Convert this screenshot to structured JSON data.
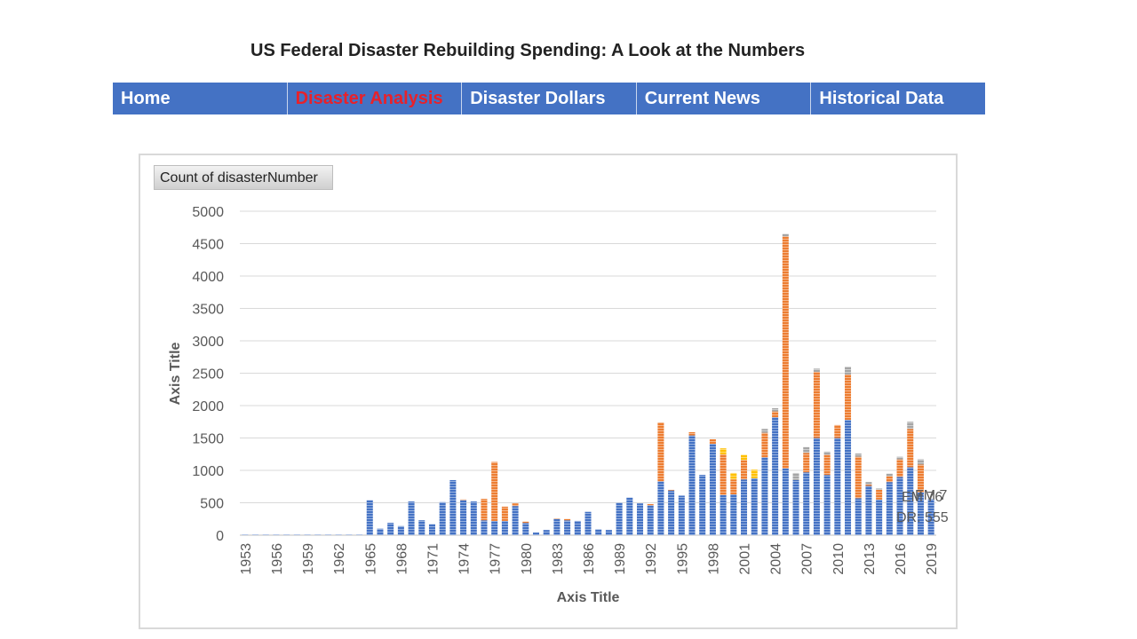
{
  "page": {
    "title": "US Federal Disaster Rebuilding Spending: A Look at the Numbers"
  },
  "nav": {
    "items": [
      {
        "label": "Home",
        "active": false
      },
      {
        "label": "Disaster Analysis",
        "active": true
      },
      {
        "label": "Disaster Dollars",
        "active": false
      },
      {
        "label": "Current News",
        "active": false
      },
      {
        "label": "Historical Data",
        "active": false
      }
    ]
  },
  "pivot_field_button": "Count of disasterNumber",
  "chart_data": {
    "type": "bar",
    "stacked": true,
    "xlabel": "Axis Title",
    "ylabel": "Axis Title",
    "ylim": [
      0,
      5000
    ],
    "yticks": [
      0,
      500,
      1000,
      1500,
      2000,
      2500,
      3000,
      3500,
      4000,
      4500,
      5000
    ],
    "grid": true,
    "x": [
      1953,
      1954,
      1955,
      1956,
      1957,
      1958,
      1959,
      1960,
      1961,
      1962,
      1963,
      1964,
      1965,
      1966,
      1967,
      1968,
      1969,
      1970,
      1971,
      1972,
      1973,
      1974,
      1975,
      1976,
      1977,
      1978,
      1979,
      1980,
      1981,
      1982,
      1983,
      1984,
      1985,
      1986,
      1987,
      1988,
      1989,
      1990,
      1991,
      1992,
      1993,
      1994,
      1995,
      1996,
      1997,
      1998,
      1999,
      2000,
      2001,
      2002,
      2003,
      2004,
      2005,
      2006,
      2007,
      2008,
      2009,
      2010,
      2011,
      2012,
      2013,
      2014,
      2015,
      2016,
      2017,
      2018,
      2019
    ],
    "xtick_labels": [
      "1953",
      "1956",
      "1959",
      "1962",
      "1965",
      "1968",
      "1971",
      "1974",
      "1977",
      "1980",
      "1983",
      "1986",
      "1989",
      "1992",
      "1995",
      "1998",
      "2001",
      "2004",
      "2007",
      "2010",
      "2013",
      "2016",
      "2019"
    ],
    "series": [
      {
        "color": "#4472c4",
        "values": [
          10,
          10,
          10,
          10,
          10,
          10,
          10,
          10,
          10,
          10,
          10,
          10,
          540,
          100,
          190,
          140,
          520,
          230,
          170,
          510,
          850,
          540,
          520,
          230,
          220,
          220,
          450,
          190,
          40,
          80,
          250,
          230,
          220,
          360,
          90,
          80,
          500,
          580,
          490,
          460,
          830,
          690,
          610,
          1540,
          930,
          1410,
          620,
          630,
          860,
          880,
          1200,
          1820,
          1030,
          850,
          970,
          1500,
          930,
          1500,
          1780,
          570,
          760,
          550,
          820,
          900,
          1050,
          660,
          555
        ]
      },
      {
        "color": "#ed7d31",
        "values": [
          0,
          0,
          0,
          0,
          0,
          0,
          0,
          0,
          0,
          0,
          0,
          0,
          0,
          0,
          0,
          0,
          0,
          0,
          0,
          0,
          0,
          10,
          0,
          330,
          910,
          220,
          40,
          20,
          0,
          0,
          10,
          20,
          0,
          0,
          0,
          0,
          0,
          0,
          0,
          20,
          910,
          10,
          0,
          50,
          0,
          70,
          630,
          230,
          300,
          0,
          380,
          90,
          3580,
          0,
          300,
          1020,
          310,
          200,
          700,
          640,
          20,
          150,
          90,
          270,
          590,
          430,
          0
        ]
      },
      {
        "color": "#ffc000",
        "values": [
          0,
          0,
          0,
          0,
          0,
          0,
          0,
          0,
          0,
          0,
          0,
          0,
          0,
          0,
          0,
          0,
          0,
          0,
          0,
          0,
          0,
          0,
          0,
          0,
          0,
          0,
          0,
          0,
          0,
          0,
          0,
          0,
          0,
          0,
          0,
          0,
          0,
          0,
          0,
          0,
          0,
          0,
          0,
          0,
          0,
          0,
          90,
          100,
          80,
          130,
          0,
          0,
          0,
          0,
          0,
          0,
          0,
          0,
          0,
          0,
          0,
          0,
          0,
          0,
          0,
          0,
          0
        ]
      },
      {
        "color": "#a5a5a5",
        "values": [
          0,
          0,
          0,
          0,
          0,
          0,
          0,
          0,
          0,
          0,
          0,
          0,
          0,
          0,
          0,
          0,
          0,
          0,
          0,
          0,
          0,
          0,
          0,
          0,
          0,
          0,
          0,
          0,
          0,
          0,
          0,
          0,
          0,
          0,
          0,
          0,
          0,
          0,
          0,
          0,
          0,
          0,
          0,
          0,
          0,
          0,
          0,
          0,
          0,
          0,
          60,
          50,
          40,
          110,
          90,
          50,
          50,
          0,
          120,
          50,
          40,
          20,
          40,
          40,
          110,
          80,
          0
        ]
      }
    ],
    "annotations": [
      "EM 76",
      "FM 7",
      "DR: 555"
    ]
  }
}
